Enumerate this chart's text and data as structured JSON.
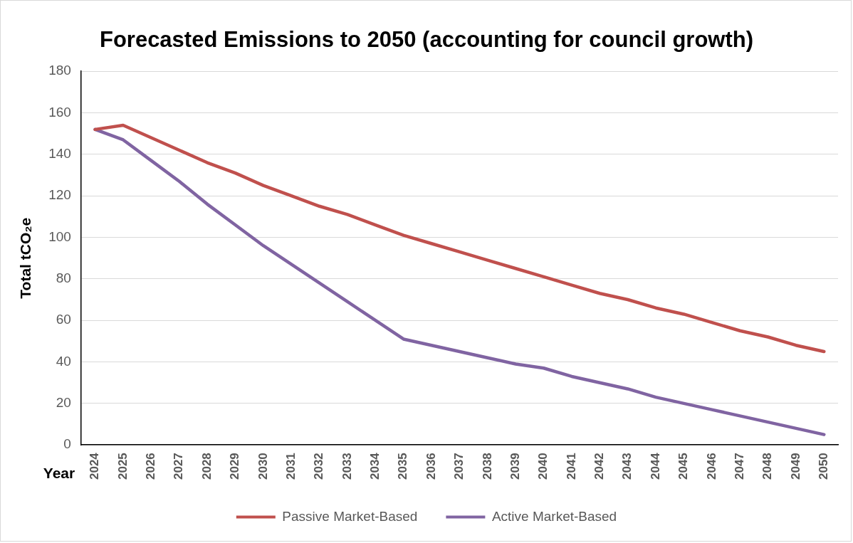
{
  "chart_data": {
    "type": "line",
    "title": "Forecasted Emissions to 2050 (accounting for council growth)",
    "xlabel": "Year",
    "ylabel": "Total tCO₂e",
    "categories": [
      "2024",
      "2025",
      "2026",
      "2027",
      "2028",
      "2029",
      "2030",
      "2031",
      "2032",
      "2033",
      "2034",
      "2035",
      "2036",
      "2037",
      "2038",
      "2039",
      "2040",
      "2041",
      "2042",
      "2043",
      "2044",
      "2045",
      "2046",
      "2047",
      "2048",
      "2049",
      "2050"
    ],
    "series": [
      {
        "name": "Passive Market-Based",
        "color": "#c0504d",
        "values": [
          152,
          154,
          148,
          142,
          136,
          131,
          125,
          120,
          115,
          111,
          106,
          101,
          97,
          93,
          89,
          85,
          81,
          77,
          73,
          70,
          66,
          63,
          59,
          55,
          52,
          48,
          45
        ]
      },
      {
        "name": "Active Market-Based",
        "color": "#8064a2",
        "values": [
          152,
          147,
          137,
          127,
          116,
          106,
          96,
          87,
          78,
          69,
          60,
          51,
          48,
          45,
          42,
          39,
          37,
          33,
          30,
          27,
          23,
          20,
          17,
          14,
          11,
          8,
          5
        ]
      }
    ],
    "ylim": [
      0,
      180
    ],
    "yticks": [
      0,
      20,
      40,
      60,
      80,
      100,
      120,
      140,
      160,
      180
    ],
    "grid": "y",
    "legend": "bottom",
    "marker": "none",
    "line_style": "solid"
  }
}
